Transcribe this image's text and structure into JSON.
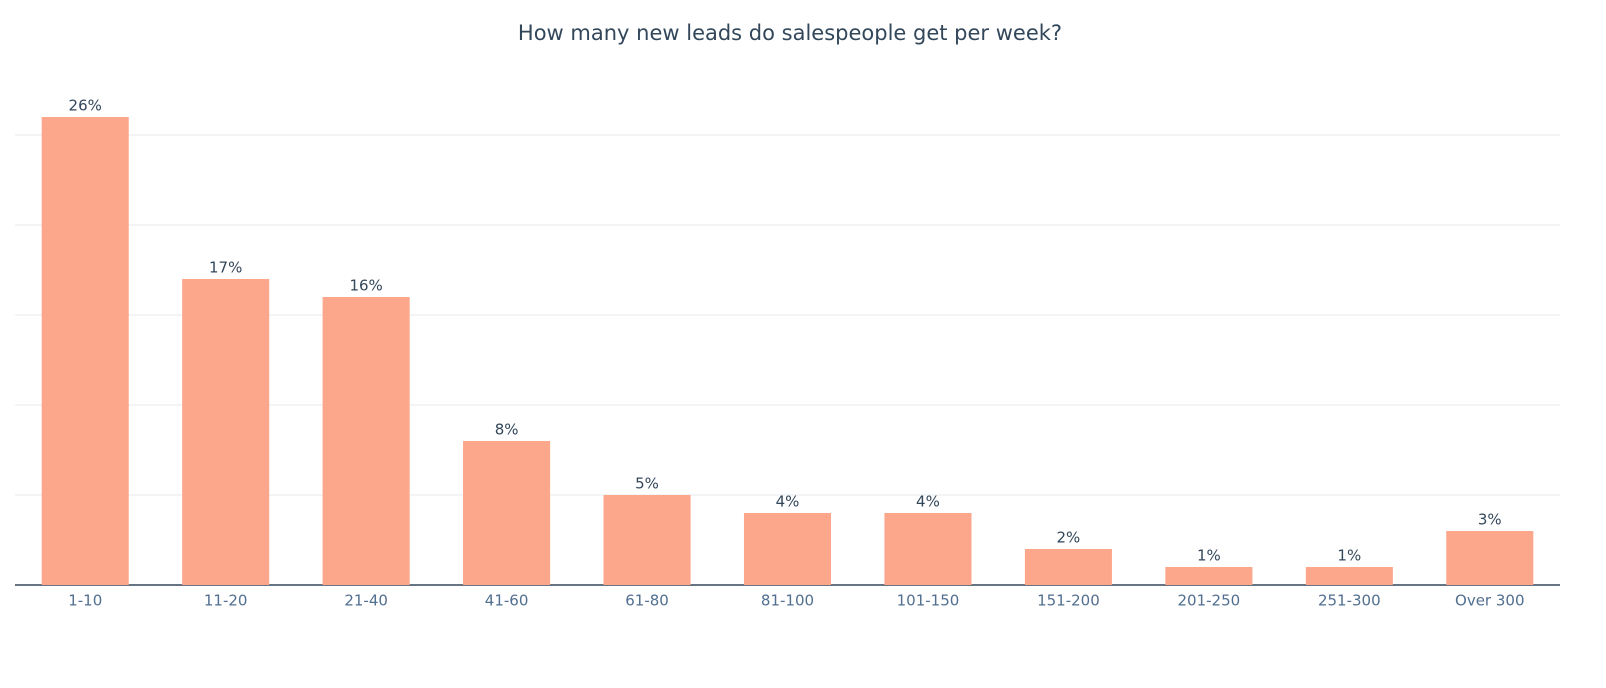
{
  "chart_data": {
    "type": "bar",
    "title": "How many new leads do salespeople get per week?",
    "categories": [
      "1-10",
      "11-20",
      "21-40",
      "41-60",
      "61-80",
      "81-100",
      "101-150",
      "151-200",
      "201-250",
      "251-300",
      "Over 300"
    ],
    "values": [
      26,
      17,
      16,
      8,
      5,
      4,
      4,
      2,
      1,
      1,
      3
    ],
    "value_labels": [
      "26%",
      "17%",
      "16%",
      "8%",
      "5%",
      "4%",
      "4%",
      "2%",
      "1%",
      "1%",
      "3%"
    ],
    "color": "#fca78c",
    "ylim": [
      0,
      27
    ],
    "yticks": [
      0,
      5,
      10,
      15,
      20,
      25
    ],
    "grid": true
  }
}
